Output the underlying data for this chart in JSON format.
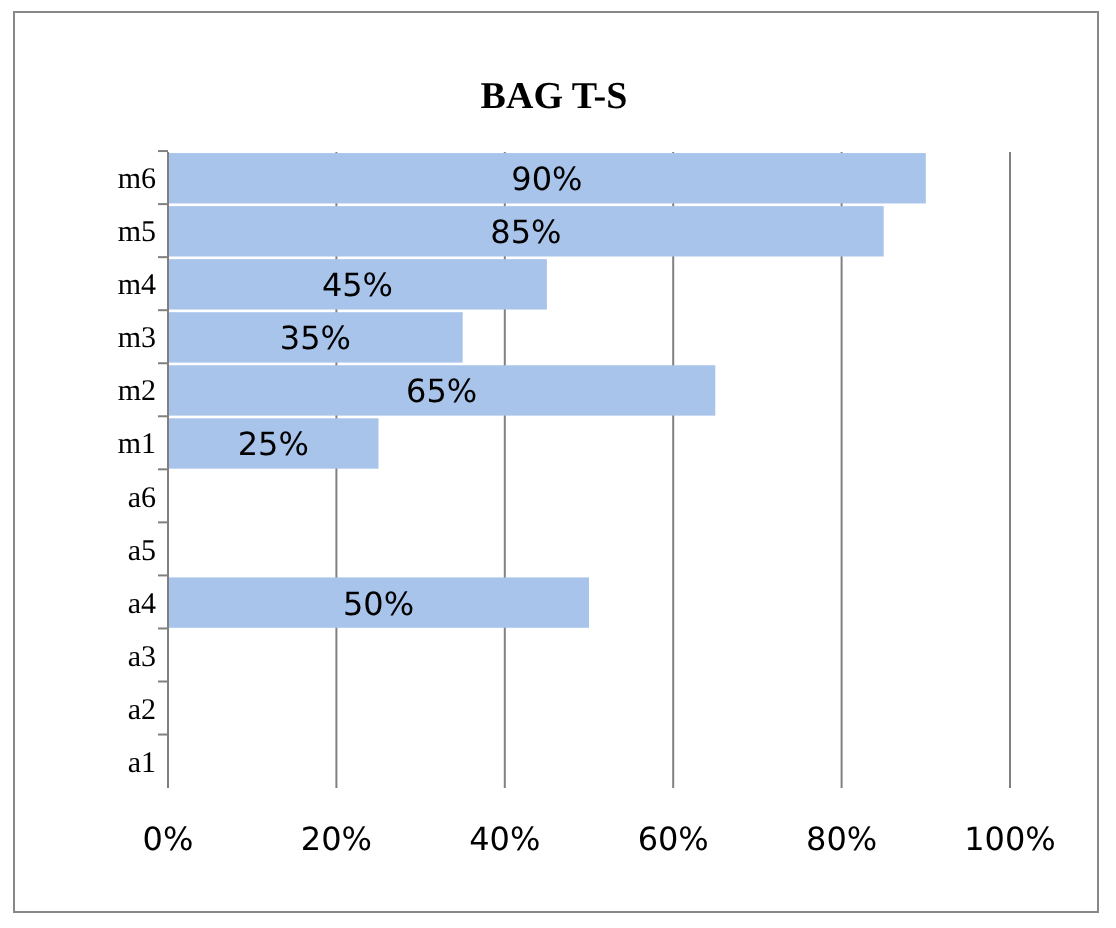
{
  "chart_data": {
    "type": "bar",
    "orientation": "horizontal",
    "title": "BAG T-S",
    "categories": [
      "m6",
      "m5",
      "m4",
      "m3",
      "m2",
      "m1",
      "a6",
      "a5",
      "a4",
      "a3",
      "a2",
      "a1"
    ],
    "values": [
      90,
      85,
      45,
      35,
      65,
      25,
      null,
      null,
      50,
      null,
      null,
      null
    ],
    "value_labels": [
      "90%",
      "85%",
      "45%",
      "35%",
      "65%",
      "25%",
      null,
      null,
      "50%",
      null,
      null,
      null
    ],
    "color": "#a9c4eb",
    "xlim": [
      0,
      100
    ],
    "xticks": [
      {
        "value": 0,
        "label": "0%"
      },
      {
        "value": 20,
        "label": "20%"
      },
      {
        "value": 40,
        "label": "40%"
      },
      {
        "value": 60,
        "label": "60%"
      },
      {
        "value": 80,
        "label": "80%"
      },
      {
        "value": 100,
        "label": "100%"
      }
    ],
    "grid": "x"
  }
}
